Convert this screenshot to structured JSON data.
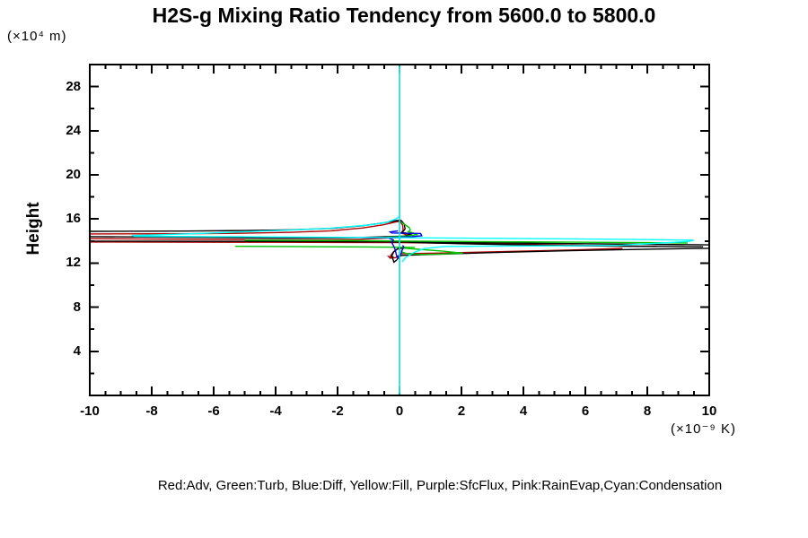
{
  "title": "H2S-g Mixing Ratio Tendency from 5600.0 to 5800.0",
  "legend": {
    "text": "Red:Adv, Green:Turb, Blue:Diff, Yellow:Fill, Purple:SfcFlux, Pink:RainEvap,Cyan:Condensation"
  },
  "y_axis": {
    "axis_label": "Height",
    "unit_label": "(×10⁴ m)",
    "range": [
      0,
      30
    ],
    "ticks": [
      4,
      8,
      12,
      16,
      20,
      24,
      28
    ],
    "minor_step": 2
  },
  "x_axis": {
    "unit_label": "(×10⁻⁹ K)",
    "range": [
      -10,
      10
    ],
    "ticks": [
      -10,
      -8,
      -6,
      -4,
      -2,
      0,
      2,
      4,
      6,
      8,
      10
    ],
    "minor_step": 0.5
  },
  "colors": {
    "frame": "#000000",
    "red": "#b00000",
    "green": "#00c400",
    "blue": "#0000dd",
    "yellow": "#e8e800",
    "purple": "#a020f0",
    "pink": "#ff80c0",
    "cyan": "#00ffff",
    "black": "#000000"
  },
  "chart_data": {
    "type": "line",
    "title": "H2S-g Mixing Ratio Tendency from 5600.0 to 5800.0",
    "xlabel": "(×10⁻⁹ K)",
    "ylabel": "Height (×10⁴ m)",
    "xlim": [
      -10,
      10
    ],
    "ylim": [
      0,
      30
    ],
    "grid": false,
    "note_units": "x = tendency in 1e-9 K, y = height in 1e4 m",
    "series": [
      {
        "name": "Fill",
        "color_key": "yellow",
        "segments": [
          [
            [
              0,
              0.2
            ],
            [
              0,
              29.8
            ]
          ]
        ]
      },
      {
        "name": "SfcFlux",
        "color_key": "purple",
        "segments": [
          [
            [
              0,
              0.2
            ],
            [
              0,
              29.8
            ]
          ]
        ]
      },
      {
        "name": "RainEvap",
        "color_key": "pink",
        "segments": [
          [
            [
              0,
              0.2
            ],
            [
              0,
              29.8
            ]
          ]
        ]
      },
      {
        "name": "Adv",
        "color_key": "red",
        "segments": [
          [
            [
              -10,
              14.64
            ],
            [
              -7,
              14.66
            ],
            [
              -5,
              14.71
            ],
            [
              -3.5,
              14.79
            ],
            [
              -2.2,
              14.93
            ],
            [
              -1.2,
              15.18
            ],
            [
              -0.5,
              15.48
            ],
            [
              -0.1,
              15.75
            ],
            [
              0.02,
              15.78
            ],
            [
              0.1,
              15.45
            ],
            [
              0.12,
              15.0
            ],
            [
              0.05,
              14.72
            ],
            [
              0.25,
              14.55
            ],
            [
              0.05,
              14.32
            ],
            [
              -1.5,
              14.13
            ],
            [
              -4,
              14.1
            ],
            [
              -10,
              14.22
            ]
          ],
          [
            [
              -10,
              13.91
            ],
            [
              -4,
              13.89
            ],
            [
              0,
              13.85
            ],
            [
              2,
              13.79
            ],
            [
              4,
              13.71
            ],
            [
              6,
              13.6
            ],
            [
              8.3,
              13.5
            ]
          ],
          [
            [
              0.15,
              13.38
            ],
            [
              -0.08,
              13.25
            ],
            [
              -0.2,
              13.0
            ],
            [
              -0.28,
              12.7
            ],
            [
              -0.18,
              12.5
            ],
            [
              -0.35,
              12.6
            ],
            [
              -0.3,
              12.45
            ],
            [
              -0.12,
              12.5
            ],
            [
              -0.02,
              12.7
            ],
            [
              0.05,
              12.85
            ],
            [
              1.2,
              12.9
            ],
            [
              3.5,
              13.05
            ],
            [
              5.8,
              13.2
            ],
            [
              7.2,
              13.33
            ]
          ]
        ]
      },
      {
        "name": "black",
        "color_key": "black",
        "segments": [
          [
            [
              -10,
              14.88
            ],
            [
              -7,
              14.9
            ],
            [
              -5,
              14.95
            ],
            [
              -3.5,
              15.02
            ],
            [
              -2.2,
              15.15
            ],
            [
              -1.2,
              15.38
            ],
            [
              -0.5,
              15.65
            ],
            [
              -0.1,
              15.85
            ],
            [
              0.05,
              15.88
            ],
            [
              0.15,
              15.55
            ],
            [
              0.18,
              15.1
            ],
            [
              0.1,
              14.8
            ],
            [
              0.35,
              14.62
            ],
            [
              0.15,
              14.45
            ],
            [
              -1.5,
              14.3
            ],
            [
              -4,
              14.27
            ],
            [
              -10,
              14.4
            ]
          ],
          [
            [
              -10,
              13.99
            ],
            [
              -4,
              13.96
            ],
            [
              0,
              13.92
            ],
            [
              2,
              13.86
            ],
            [
              5,
              13.78
            ],
            [
              8,
              13.7
            ],
            [
              10,
              13.65
            ]
          ],
          [
            [
              0.3,
              13.88
            ],
            [
              2.5,
              13.72
            ],
            [
              5.5,
              13.58
            ],
            [
              8.5,
              13.5
            ],
            [
              9.8,
              13.48
            ]
          ],
          [
            [
              0.25,
              13.42
            ],
            [
              -0.05,
              13.32
            ],
            [
              -0.18,
              13.05
            ],
            [
              -0.25,
              12.65
            ],
            [
              -0.18,
              12.08
            ],
            [
              -0.08,
              12.3
            ],
            [
              -0.02,
              12.6
            ],
            [
              0.08,
              12.7
            ],
            [
              1,
              12.78
            ],
            [
              3,
              12.95
            ],
            [
              5.5,
              13.12
            ],
            [
              8,
              13.26
            ],
            [
              10,
              13.34
            ]
          ]
        ]
      },
      {
        "name": "Turb",
        "color_key": "green",
        "segments": [
          [
            [
              0.05,
              15.72
            ],
            [
              0.2,
              15.45
            ],
            [
              0.32,
              15.2
            ],
            [
              0.35,
              15.0
            ],
            [
              0.28,
              14.85
            ],
            [
              0.45,
              14.72
            ],
            [
              0.55,
              14.58
            ],
            [
              0.3,
              14.48
            ],
            [
              -0.1,
              14.4
            ],
            [
              -0.4,
              14.34
            ]
          ],
          [
            [
              -5,
              14.08
            ],
            [
              -2,
              14.05
            ],
            [
              0,
              14.0
            ],
            [
              2.5,
              13.95
            ],
            [
              5,
              13.9
            ],
            [
              7.5,
              13.86
            ],
            [
              9.3,
              13.82
            ]
          ],
          [
            [
              -5.3,
              13.52
            ],
            [
              -3,
              13.49
            ],
            [
              -1,
              13.46
            ],
            [
              0.5,
              13.42
            ]
          ],
          [
            [
              0.1,
              13.36
            ],
            [
              0.6,
              13.25
            ],
            [
              1.4,
              13.08
            ],
            [
              2.05,
              12.9
            ],
            [
              1.4,
              12.82
            ],
            [
              0.7,
              12.78
            ],
            [
              0.25,
              12.85
            ],
            [
              0.08,
              13.0
            ],
            [
              0.05,
              13.15
            ]
          ]
        ]
      },
      {
        "name": "Diff",
        "color_key": "blue",
        "segments": [
          [
            [
              -0.05,
              14.92
            ],
            [
              -0.3,
              14.82
            ],
            [
              -0.25,
              14.73
            ],
            [
              0.2,
              14.71
            ],
            [
              0.68,
              14.68
            ],
            [
              0.72,
              14.48
            ],
            [
              0.4,
              14.4
            ],
            [
              0,
              14.36
            ],
            [
              -0.3,
              14.32
            ],
            [
              -1.0,
              14.3
            ],
            [
              -1.55,
              14.33
            ]
          ],
          [
            [
              -0.35,
              14.28
            ],
            [
              -0.2,
              14.1
            ],
            [
              -0.25,
              13.85
            ],
            [
              -0.2,
              13.6
            ],
            [
              -0.15,
              13.3
            ],
            [
              -0.12,
              12.95
            ],
            [
              -0.08,
              12.55
            ],
            [
              -0.02,
              12.42
            ],
            [
              0.04,
              12.8
            ],
            [
              0.08,
              13.15
            ],
            [
              0.14,
              13.45
            ],
            [
              0.1,
              13.6
            ]
          ]
        ]
      },
      {
        "name": "Condensation",
        "color_key": "cyan",
        "segments": [
          [
            [
              0,
              0.05
            ],
            [
              0,
              29.95
            ]
          ],
          [
            [
              0.02,
              16.3
            ],
            [
              -0.12,
              16.0
            ],
            [
              -0.4,
              15.7
            ],
            [
              -1.0,
              15.45
            ],
            [
              -2.3,
              15.15
            ],
            [
              -3.6,
              14.98
            ],
            [
              -4.8,
              14.86
            ],
            [
              -6.5,
              14.68
            ],
            [
              -7.8,
              14.56
            ],
            [
              -8.64,
              14.5
            ],
            [
              -8.55,
              14.44
            ],
            [
              -6,
              14.4
            ],
            [
              -3,
              14.36
            ],
            [
              0,
              14.3
            ],
            [
              2,
              14.26
            ],
            [
              4,
              14.22
            ],
            [
              6,
              14.18
            ],
            [
              8,
              14.13
            ],
            [
              9.5,
              14.08
            ],
            [
              9.35,
              13.97
            ],
            [
              8.2,
              13.78
            ],
            [
              7.05,
              13.6
            ],
            [
              5,
              13.56
            ],
            [
              2.5,
              13.53
            ],
            [
              1.45,
              13.5
            ],
            [
              0.8,
              13.32
            ],
            [
              0.45,
              12.95
            ],
            [
              0.2,
              12.5
            ],
            [
              0.08,
              12.1
            ]
          ]
        ]
      }
    ]
  }
}
